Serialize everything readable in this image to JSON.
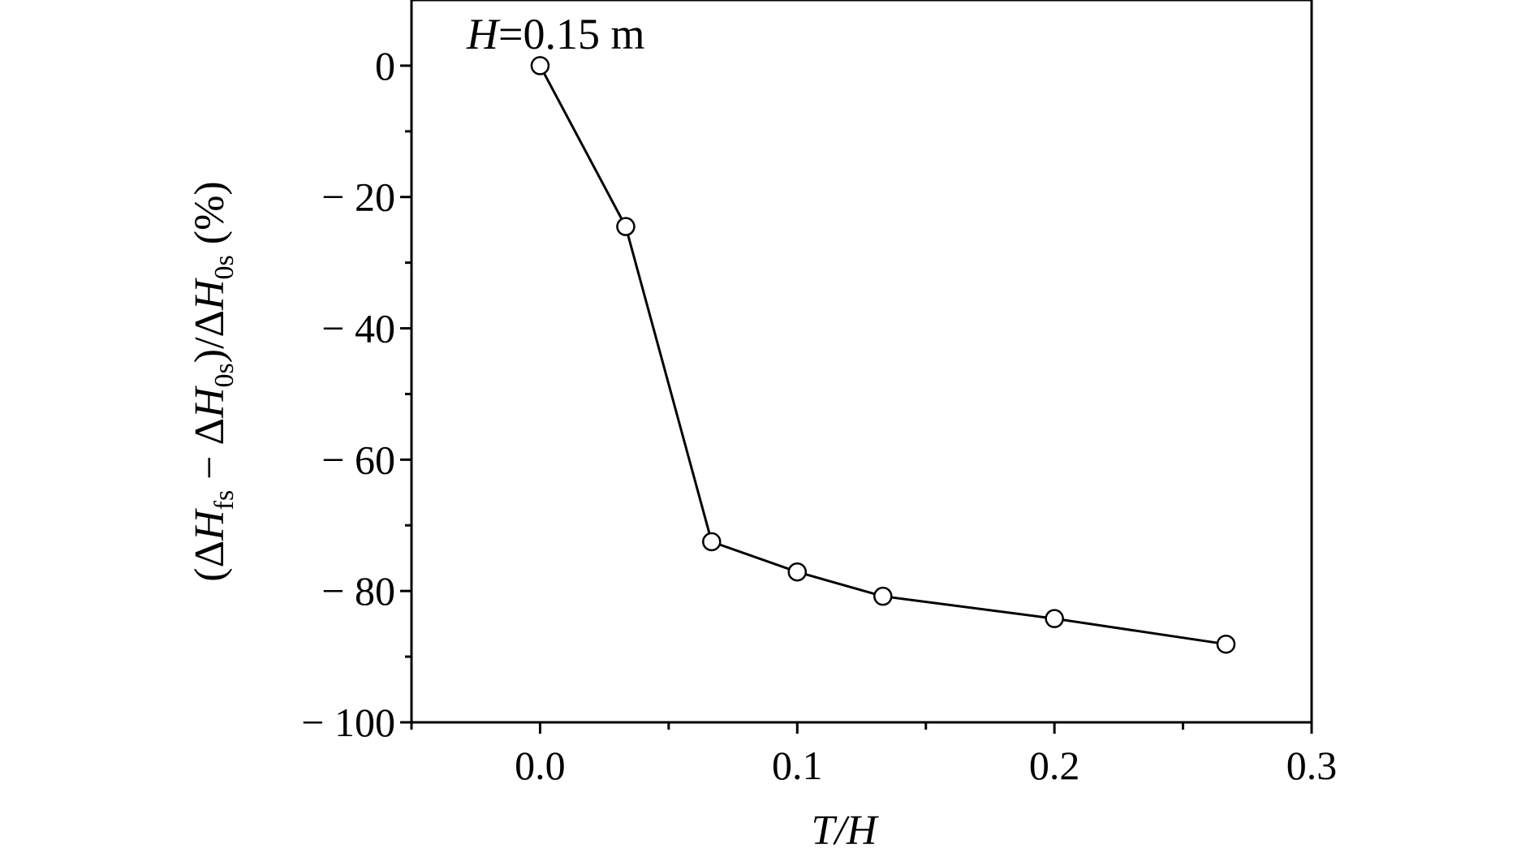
{
  "chart_data": {
    "type": "line",
    "annotation": {
      "italic": "H",
      "rest": "=0.15 m"
    },
    "xlabel": "T/H",
    "ylabel": {
      "p1": "(Δ",
      "H1": "H",
      "s1": "fs",
      "p2": " − Δ",
      "H2": "H",
      "s2": "0s",
      "p3": ")/Δ",
      "H3": "H",
      "s3": "0s",
      "p4": " (%)"
    },
    "xlim": [
      -0.05,
      0.3
    ],
    "ylim": [
      -100,
      10
    ],
    "x_ticks": [
      0.0,
      0.1,
      0.2,
      0.3
    ],
    "x_tick_labels": [
      "0.0",
      "0.1",
      "0.2",
      "0.3"
    ],
    "x_minor_ticks": [
      -0.05,
      0.05,
      0.15,
      0.25
    ],
    "y_ticks": [
      0,
      -20,
      -40,
      -60,
      -80,
      -100
    ],
    "y_tick_labels": [
      "0",
      "− 20",
      "− 40",
      "− 60",
      "− 80",
      "− 100"
    ],
    "y_minor_ticks": [
      -10,
      -30,
      -50,
      -70,
      -90
    ],
    "grid": false,
    "marker": "open-circle",
    "line_color": "#000000",
    "series": [
      {
        "x": [
          0.0,
          0.0333,
          0.0667,
          0.1,
          0.1333,
          0.2,
          0.2667
        ],
        "y": [
          0.0,
          -24.5,
          -72.5,
          -77.1,
          -80.8,
          -84.2,
          -88.1
        ]
      }
    ]
  }
}
